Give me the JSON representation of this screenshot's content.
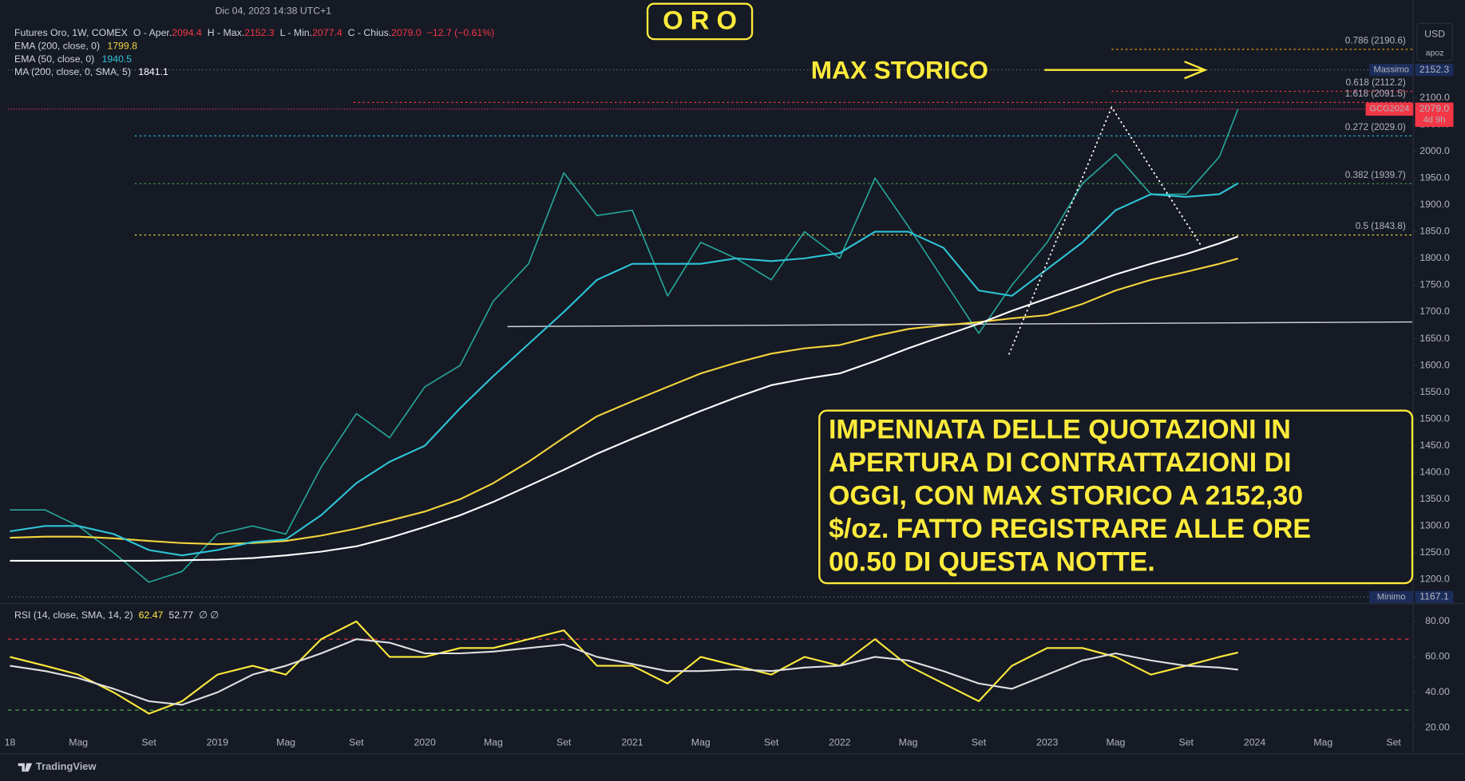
{
  "header": {
    "datetime": "Dic 04, 2023 14:38 UTC+1",
    "title": "O R O",
    "ohlc": [
      {
        "label": "O - Aper.",
        "value": "2094.4"
      },
      {
        "label": "H - Max.",
        "value": "2152.3"
      },
      {
        "label": "L - Min.",
        "value": "2077.4"
      },
      {
        "label": "C - Chius.",
        "value": "2079.0"
      }
    ],
    "change": "−12.7 (−0.61%)",
    "currency": "USD",
    "unit": "apoz"
  },
  "chart_data": [
    {
      "type": "line",
      "x": [
        2018,
        2018.17,
        2018.33,
        2018.5,
        2018.67,
        2018.83,
        2019,
        2019.17,
        2019.33,
        2019.5,
        2019.67,
        2019.83,
        2020,
        2020.17,
        2020.33,
        2020.5,
        2020.67,
        2020.83,
        2021,
        2021.17,
        2021.33,
        2021.5,
        2021.67,
        2021.83,
        2022,
        2022.17,
        2022.33,
        2022.5,
        2022.67,
        2022.83,
        2023,
        2023.17,
        2023.33,
        2023.5,
        2023.67,
        2023.83,
        2023.92
      ],
      "series": [
        {
          "name": "Futures Oro, 1W, COMEX",
          "color": "#26a69a",
          "values": [
            1330,
            1330,
            1300,
            1250,
            1195,
            1215,
            1285,
            1300,
            1285,
            1410,
            1510,
            1465,
            1560,
            1600,
            1720,
            1790,
            1960,
            1880,
            1890,
            1730,
            1830,
            1800,
            1760,
            1850,
            1800,
            1950,
            1860,
            1760,
            1660,
            1750,
            1830,
            1940,
            1995,
            1920,
            1920,
            1990,
            2079
          ]
        },
        {
          "name": "EMA (200, close, 0)",
          "color": "#f5d63d",
          "legend_value": 1799.8,
          "values": [
            1278,
            1280,
            1280,
            1277,
            1272,
            1268,
            1266,
            1268,
            1272,
            1282,
            1295,
            1310,
            1327,
            1350,
            1380,
            1420,
            1465,
            1505,
            1533,
            1560,
            1585,
            1605,
            1622,
            1632,
            1638,
            1655,
            1668,
            1675,
            1681,
            1688,
            1694,
            1715,
            1740,
            1760,
            1775,
            1790,
            1799.8
          ]
        },
        {
          "name": "EMA (50, close, 0)",
          "color": "#2ec4d6",
          "legend_value": 1940.5,
          "values": [
            1290,
            1300,
            1300,
            1285,
            1255,
            1245,
            1255,
            1270,
            1275,
            1320,
            1380,
            1420,
            1450,
            1520,
            1580,
            1640,
            1700,
            1760,
            1790,
            1790,
            1790,
            1800,
            1795,
            1800,
            1810,
            1850,
            1850,
            1820,
            1740,
            1730,
            1780,
            1830,
            1890,
            1920,
            1915,
            1920,
            1940.5
          ]
        },
        {
          "name": "MA (200, close, 0, SMA, 5)",
          "color": "#ffffff",
          "legend_value": 1841.1,
          "values": [
            1235,
            1235,
            1235,
            1235,
            1235,
            1236,
            1237,
            1240,
            1245,
            1252,
            1262,
            1278,
            1298,
            1320,
            1345,
            1375,
            1405,
            1435,
            1463,
            1490,
            1515,
            1540,
            1563,
            1575,
            1585,
            1608,
            1632,
            1655,
            1678,
            1702,
            1725,
            1748,
            1770,
            1790,
            1808,
            1828,
            1841.1
          ]
        }
      ],
      "xlim": [
        2017.99,
        2024.76
      ],
      "ylim": [
        1158.2,
        2248
      ],
      "xticks": [
        {
          "value": 2018,
          "label": "18"
        },
        {
          "value": 2018.33,
          "label": "Mag"
        },
        {
          "value": 2018.67,
          "label": "Set"
        },
        2019,
        {
          "value": 2019.33,
          "label": "Mag"
        },
        {
          "value": 2019.67,
          "label": "Set"
        },
        2020,
        {
          "value": 2020.33,
          "label": "Mag"
        },
        {
          "value": 2020.67,
          "label": "Set"
        },
        2021,
        {
          "value": 2021.33,
          "label": "Mag"
        },
        {
          "value": 2021.67,
          "label": "Set"
        },
        2022,
        {
          "value": 2022.33,
          "label": "Mag"
        },
        {
          "value": 2022.67,
          "label": "Set"
        },
        2023,
        {
          "value": 2023.33,
          "label": "Mag"
        },
        {
          "value": 2023.67,
          "label": "Set"
        },
        2024,
        {
          "value": 2024.33,
          "label": "Mag"
        },
        {
          "value": 2024.67,
          "label": "Set"
        }
      ],
      "yticks": [
        {
          "value": 1200,
          "label": "1200.0"
        },
        {
          "value": 1250,
          "label": "1250.0"
        },
        {
          "value": 1300,
          "label": "1300.0"
        },
        {
          "value": 1350,
          "label": "1350.0"
        },
        {
          "value": 1400,
          "label": "1400.0"
        },
        {
          "value": 1450,
          "label": "1450.0"
        },
        {
          "value": 1500,
          "label": "1500.0"
        },
        {
          "value": 1550,
          "label": "1550.0"
        },
        {
          "value": 1600,
          "label": "1600.0"
        },
        {
          "value": 1650,
          "label": "1650.0"
        },
        {
          "value": 1700,
          "label": "1700.0"
        },
        {
          "value": 1750,
          "label": "1750.0"
        },
        {
          "value": 1800,
          "label": "1800.0"
        },
        {
          "value": 1850,
          "label": "1850.0"
        },
        {
          "value": 1900,
          "label": "1900.0"
        },
        {
          "value": 1950,
          "label": "1950.0"
        },
        {
          "value": 2000,
          "label": "2000.0"
        },
        {
          "value": 2050,
          "label": "2050.0"
        },
        {
          "value": 2100,
          "label": "2100.0"
        }
      ],
      "grid": false,
      "fib_levels": [
        {
          "value": 2190.6,
          "label": "0.786 (2190.6)",
          "color": "#f7a600"
        },
        {
          "value": 2112.2,
          "label": "0.618 (2112.2)",
          "color": "#f23645"
        },
        {
          "value": 2091.5,
          "label": "1.618 (2091.5)",
          "color": "#f23645"
        },
        {
          "value": 2029,
          "label": "0.272 (2029.0)",
          "color": "#22d3ee"
        },
        {
          "value": 1939.7,
          "label": "0.382 (1939.7)",
          "color": "#4caf50"
        },
        {
          "value": 1843.8,
          "label": "0.5 (1843.8)",
          "color": "#ffeb3b"
        }
      ],
      "price_tags": [
        {
          "label": "Massimo",
          "value": 2152.3,
          "color": "#1c2d5a"
        },
        {
          "label": "Minimo",
          "value": 1167.1,
          "color": "#1c2d5a"
        }
      ],
      "last_price": {
        "label": "GCG2024",
        "value": 2079,
        "value_label": "2079.0",
        "countdown": "4d 9h",
        "color": "#f23645"
      },
      "arrow_label": "MAX STORICO",
      "annotation": [
        "IMPENNATA DELLE QUOTAZIONI IN",
        "APERTURA DI CONTRATTAZIONI DI",
        "OGGI, CON MAX STORICO A 2152,30",
        "$/oz. FATTO REGISTRARE ALLE ORE",
        "00.50 DI QUESTA NOTTE."
      ]
    },
    {
      "type": "line",
      "title": "RSI (14, close, SMA, 14, 2)",
      "extra": "∅ ∅",
      "x": [
        2018,
        2018.17,
        2018.33,
        2018.5,
        2018.67,
        2018.83,
        2019,
        2019.17,
        2019.33,
        2019.5,
        2019.67,
        2019.83,
        2020,
        2020.17,
        2020.33,
        2020.5,
        2020.67,
        2020.83,
        2021,
        2021.17,
        2021.33,
        2021.5,
        2021.67,
        2021.83,
        2022,
        2022.17,
        2022.33,
        2022.5,
        2022.67,
        2022.83,
        2023,
        2023.17,
        2023.33,
        2023.5,
        2023.67,
        2023.83,
        2023.92
      ],
      "series": [
        {
          "color": "#ffeb3b",
          "legend_value": 62.47,
          "values": [
            60,
            55,
            50,
            40,
            28,
            35,
            50,
            55,
            50,
            70,
            80,
            60,
            60,
            65,
            65,
            70,
            75,
            55,
            55,
            45,
            60,
            55,
            50,
            60,
            55,
            70,
            55,
            45,
            35,
            55,
            65,
            65,
            60,
            50,
            55,
            60,
            62.47
          ]
        },
        {
          "color": "#e0e0e0",
          "legend_value": 52.77,
          "values": [
            55,
            52,
            48,
            42,
            35,
            33,
            40,
            50,
            55,
            62,
            70,
            68,
            62,
            62,
            63,
            65,
            67,
            60,
            56,
            52,
            52,
            53,
            52,
            54,
            55,
            60,
            58,
            52,
            45,
            42,
            50,
            58,
            62,
            58,
            55,
            54,
            52.77
          ]
        }
      ],
      "bands": [
        {
          "value": 70,
          "color": "#f23645"
        },
        {
          "value": 30,
          "color": "#4caf50"
        }
      ],
      "xlim": [
        2017.99,
        2024.76
      ],
      "ylim": [
        14.74,
        88.42
      ],
      "yticks": [
        {
          "value": 20,
          "label": "20.00"
        },
        {
          "value": 40,
          "label": "40.00"
        },
        {
          "value": 60,
          "label": "60.00"
        },
        {
          "value": 80,
          "label": "80.00"
        }
      ]
    }
  ],
  "footer": {
    "brand": "TradingView"
  }
}
